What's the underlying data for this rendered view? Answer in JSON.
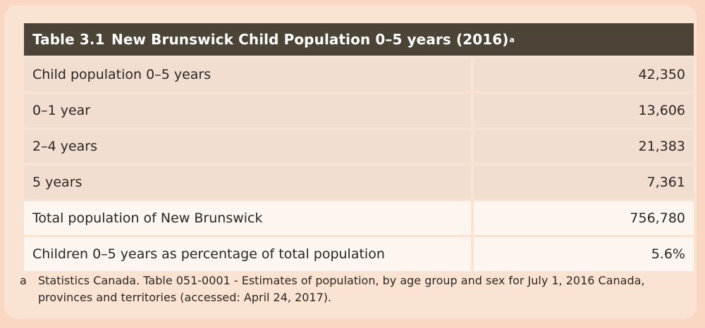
{
  "table": {
    "number": "Table 3.1",
    "title": "New Brunswick Child Population 0–5 years (2016)",
    "title_footnote_marker": "a",
    "rows": [
      {
        "label": "Child population 0–5 years",
        "value": "42,350"
      },
      {
        "label": "0–1 year",
        "value": "13,606"
      },
      {
        "label": "2–4 years",
        "value": "21,383"
      },
      {
        "label": "5 years",
        "value": "7,361"
      },
      {
        "label": "Total population of New Brunswick",
        "value": "756,780"
      },
      {
        "label": "Children 0–5 years as percentage of total population",
        "value": "5.6%"
      }
    ]
  },
  "footnote": {
    "marker": "a",
    "text": "Statistics Canada. Table 051-0001 - Estimates of population, by age group and sex for July 1, 2016 Canada, provinces and territories (accessed: April 24, 2017)."
  },
  "colors": {
    "title_bg": "#4c4537",
    "panel_bg": "#fbe3d3",
    "row_shaded": "#f2ded1",
    "row_light": "#fdf5f0"
  }
}
